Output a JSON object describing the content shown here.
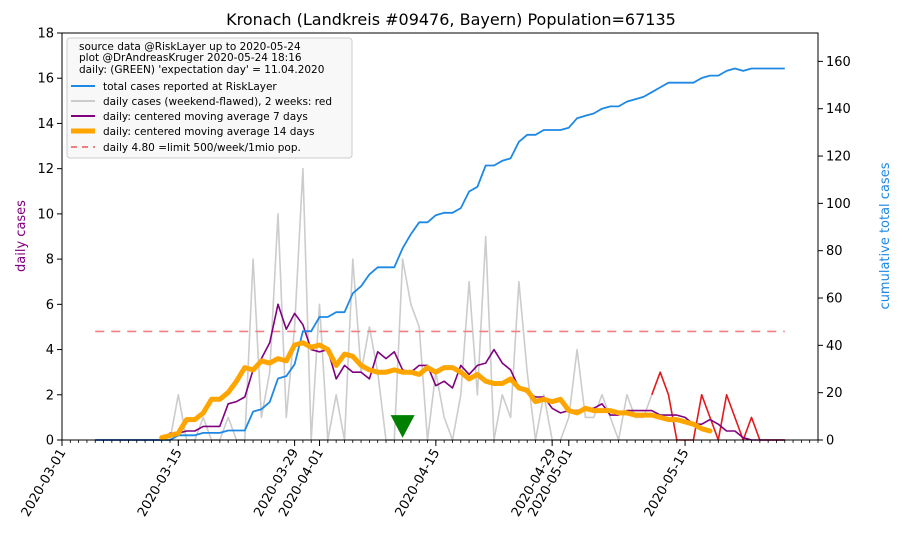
{
  "chart_data": {
    "type": "line",
    "title": "Kronach (Landkreis #09476, Bayern) Population=67135",
    "ylabel_left": "daily cases",
    "ylabel_right": "cumulative total cases",
    "ylim_left": [
      0,
      18
    ],
    "ylim_right": [
      0,
      172
    ],
    "yticks_left": [
      "0",
      "2",
      "4",
      "6",
      "8",
      "10",
      "12",
      "14",
      "16",
      "18"
    ],
    "yticks_right": [
      "0",
      "20",
      "40",
      "60",
      "80",
      "100",
      "120",
      "140",
      "160"
    ],
    "x_range": [
      "2020-03-01",
      "2020-05-31"
    ],
    "xticks": [
      {
        "date": "2020-03-01",
        "label": "2020-03-01"
      },
      {
        "date": "2020-03-15",
        "label": "2020-03-15"
      },
      {
        "date": "2020-03-29",
        "label": "2020-03-29"
      },
      {
        "date": "2020-04-01",
        "label": "2020-04-01"
      },
      {
        "date": "2020-04-15",
        "label": "2020-04-15"
      },
      {
        "date": "2020-04-29",
        "label": "2020-04-29"
      },
      {
        "date": "2020-05-01",
        "label": "2020-05-01"
      },
      {
        "date": "2020-05-15",
        "label": "2020-05-15"
      }
    ],
    "info_lines": [
      "source data @RiskLayer up to 2020-05-24",
      "plot @DrAndreasKruger 2020-05-24 18:16",
      "daily: (GREEN) 'expectation day' = 11.04.2020"
    ],
    "expectation_day": "2020-04-11",
    "limit_value": 4.8,
    "colors": {
      "cumulative": "#1e88e5",
      "daily_raw": "#cccccc",
      "daily_recent": "#e31a1c",
      "ma7": "#800080",
      "ma14": "#ffa500",
      "limit": "#f08080",
      "marker": "#008000",
      "right_axis_label": "#1e88e5",
      "left_axis_label": "#800080"
    },
    "series": [
      {
        "name": "total cases reported at RiskLayer",
        "axis": "right",
        "start": "2020-03-05",
        "values": [
          0,
          0,
          0,
          0,
          0,
          0,
          0,
          0,
          0,
          0,
          2,
          2,
          2,
          3,
          3,
          3,
          4,
          4,
          4,
          12,
          13,
          16,
          26,
          27,
          32,
          46,
          46,
          52,
          52,
          54,
          54,
          62,
          65,
          70,
          73,
          73,
          73,
          81,
          87,
          92,
          92,
          95,
          96,
          96,
          98,
          105,
          107,
          116,
          116,
          118,
          119,
          126,
          129,
          129,
          131,
          131,
          131,
          132,
          136,
          137,
          138,
          140,
          141,
          141,
          143,
          144,
          145,
          147,
          149,
          151,
          151,
          151,
          151,
          153,
          154,
          154,
          156,
          157,
          156,
          157,
          157,
          157,
          157,
          157
        ]
      },
      {
        "name": "daily cases (weekend-flawed), 2 weeks: red",
        "axis": "left",
        "start": "2020-03-05",
        "recent_from": "2020-05-11",
        "values": [
          0,
          0,
          0,
          0,
          0,
          0,
          0,
          0,
          0,
          0,
          2,
          0,
          0,
          1,
          0,
          0,
          1,
          0,
          0,
          8,
          1,
          3,
          10,
          1,
          5,
          12,
          0,
          6,
          0,
          2,
          0,
          8,
          3,
          5,
          3,
          0,
          0,
          8,
          6,
          5,
          0,
          3,
          1,
          0,
          2,
          7,
          2,
          9,
          0,
          2,
          1,
          7,
          3,
          0,
          2,
          0,
          0,
          1,
          4,
          1,
          1,
          2,
          1,
          0,
          2,
          1,
          1,
          2,
          3,
          2,
          0,
          0,
          0,
          2,
          1,
          0,
          2,
          1,
          0,
          1,
          0,
          0,
          0,
          0
        ]
      },
      {
        "name": "daily: centered moving average 7 days",
        "axis": "left",
        "start": "2020-03-05",
        "values": [
          0,
          0,
          0,
          0,
          0,
          0,
          0,
          0,
          0,
          0.3,
          0.3,
          0.4,
          0.4,
          0.6,
          0.6,
          0.6,
          1.6,
          1.7,
          1.9,
          3.1,
          3.6,
          4.3,
          6.0,
          4.9,
          5.6,
          5.1,
          4.0,
          3.9,
          4.0,
          2.7,
          3.3,
          3.0,
          3.0,
          2.7,
          3.9,
          3.6,
          3.9,
          3.1,
          3.0,
          3.3,
          3.3,
          2.4,
          2.6,
          2.3,
          3.3,
          2.9,
          3.3,
          3.4,
          4.0,
          3.4,
          3.1,
          2.3,
          2.1,
          1.9,
          1.9,
          1.4,
          1.2,
          1.3,
          1.3,
          1.4,
          1.4,
          1.6,
          1.1,
          1.1,
          1.3,
          1.3,
          1.3,
          1.3,
          1.1,
          1.1,
          1.1,
          1.0,
          0.7,
          0.7,
          0.9,
          0.7,
          0.4,
          0.4,
          0.1,
          0,
          0,
          0,
          0,
          0
        ]
      },
      {
        "name": "daily: centered moving average 14 days",
        "axis": "left",
        "start": "2020-03-13",
        "end": "2020-05-19",
        "values": [
          0.1,
          0.2,
          0.3,
          0.9,
          0.9,
          1.2,
          1.8,
          1.8,
          2.1,
          2.6,
          3.2,
          3.1,
          3.5,
          3.4,
          3.6,
          3.5,
          4.2,
          4.3,
          4.1,
          4.2,
          4.0,
          3.3,
          3.8,
          3.7,
          3.3,
          3.1,
          3.0,
          3.0,
          3.1,
          3.0,
          3.0,
          2.9,
          3.2,
          3.0,
          3.2,
          3.2,
          3.0,
          2.7,
          2.9,
          2.6,
          2.5,
          2.5,
          2.7,
          2.3,
          2.2,
          1.7,
          1.8,
          1.7,
          1.8,
          1.3,
          1.2,
          1.4,
          1.3,
          1.3,
          1.3,
          1.2,
          1.2,
          1.1,
          1.1,
          1.1,
          1.0,
          0.9,
          0.9,
          0.8,
          0.7,
          0.5,
          0.4
        ]
      }
    ],
    "limit_series_name": "daily 4.80 =limit 500/week/1mio pop."
  }
}
